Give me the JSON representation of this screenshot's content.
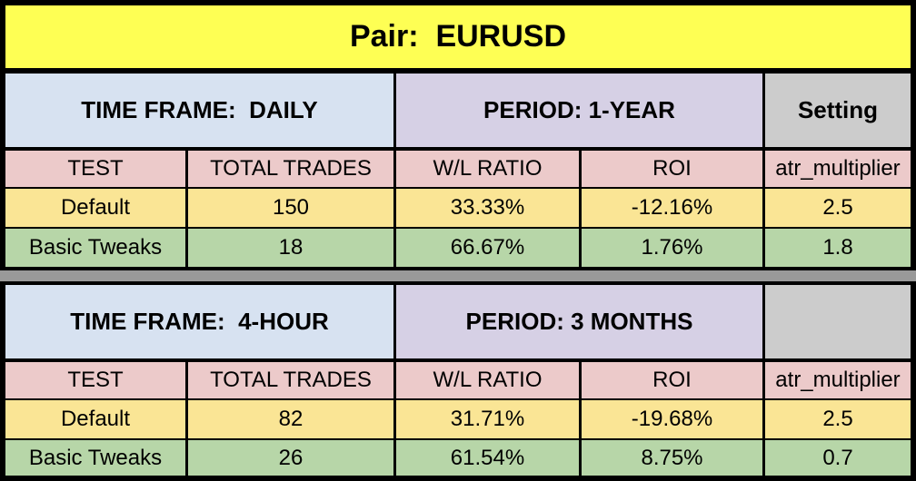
{
  "title": "Pair:  EURUSD",
  "colors": {
    "title_bg": "#feff54",
    "timeframe_bg": "#d7e2f1",
    "period_bg": "#d6d0e5",
    "setting_bg": "#cccccc",
    "colhead_bg": "#eccaca",
    "row_default_bg": "#fae595",
    "row_tweaks_bg": "#b7d6a8",
    "divider_bg": "#999999",
    "border": "#000000"
  },
  "sections": [
    {
      "time_frame_label": "TIME FRAME:  DAILY",
      "period_label": "PERIOD: 1-YEAR",
      "setting_label": "Setting",
      "columns": [
        "TEST",
        "TOTAL TRADES",
        "W/L RATIO",
        "ROI",
        "atr_multiplier"
      ],
      "rows": [
        {
          "test": "Default",
          "total_trades": "150",
          "wl_ratio": "33.33%",
          "roi": "-12.16%",
          "atr_multiplier": "2.5"
        },
        {
          "test": "Basic Tweaks",
          "total_trades": "18",
          "wl_ratio": "66.67%",
          "roi": "1.76%",
          "atr_multiplier": "1.8"
        }
      ]
    },
    {
      "time_frame_label": "TIME FRAME:  4-HOUR",
      "period_label": "PERIOD: 3 MONTHS",
      "setting_label": "",
      "columns": [
        "TEST",
        "TOTAL TRADES",
        "W/L RATIO",
        "ROI",
        "atr_multiplier"
      ],
      "rows": [
        {
          "test": "Default",
          "total_trades": "82",
          "wl_ratio": "31.71%",
          "roi": "-19.68%",
          "atr_multiplier": "2.5"
        },
        {
          "test": "Basic Tweaks",
          "total_trades": "26",
          "wl_ratio": "61.54%",
          "roi": "8.75%",
          "atr_multiplier": "0.7"
        }
      ]
    }
  ],
  "chart_data": [
    {
      "type": "table",
      "title": "Pair: EURUSD — TIME FRAME: DAILY, PERIOD: 1-YEAR",
      "columns": [
        "TEST",
        "TOTAL TRADES",
        "W/L RATIO",
        "ROI",
        "atr_multiplier"
      ],
      "rows": [
        [
          "Default",
          150,
          "33.33%",
          "-12.16%",
          2.5
        ],
        [
          "Basic Tweaks",
          18,
          "66.67%",
          "1.76%",
          1.8
        ]
      ]
    },
    {
      "type": "table",
      "title": "Pair: EURUSD — TIME FRAME: 4-HOUR, PERIOD: 3 MONTHS",
      "columns": [
        "TEST",
        "TOTAL TRADES",
        "W/L RATIO",
        "ROI",
        "atr_multiplier"
      ],
      "rows": [
        [
          "Default",
          82,
          "31.71%",
          "-19.68%",
          2.5
        ],
        [
          "Basic Tweaks",
          26,
          "61.54%",
          "8.75%",
          0.7
        ]
      ]
    }
  ]
}
